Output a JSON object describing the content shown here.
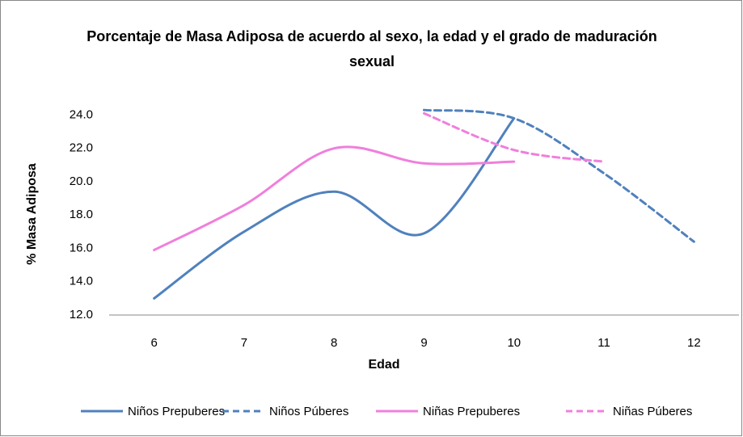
{
  "chart_data": {
    "type": "line",
    "title": "Porcentaje de Masa Adiposa de acuerdo al sexo, la edad y el grado de maduración sexual",
    "x_label": "Edad",
    "y_label": "% Masa Adiposa",
    "categories": [
      "6",
      "7",
      "8",
      "9",
      "10",
      "11",
      "12"
    ],
    "ylim": [
      12,
      24.6
    ],
    "yticks": [
      {
        "value": 12,
        "label": "12.0"
      },
      {
        "value": 14,
        "label": "14.0"
      },
      {
        "value": 16,
        "label": "16.0"
      },
      {
        "value": 18,
        "label": "18.0"
      },
      {
        "value": 20,
        "label": "20.0"
      },
      {
        "value": 22,
        "label": "22.0"
      },
      {
        "value": 24,
        "label": "24.0"
      }
    ],
    "smooth": true,
    "grid": false,
    "legend": "bottom",
    "series": [
      {
        "name": "Niños Prepuberes",
        "color": "#4f81bd",
        "dashed": false,
        "values": [
          13.0,
          17.0,
          19.4,
          16.9,
          23.8,
          null,
          null
        ]
      },
      {
        "name": "Niños Púberes",
        "color": "#4f81bd",
        "dashed": true,
        "values": [
          null,
          null,
          null,
          24.3,
          23.8,
          20.5,
          16.4
        ]
      },
      {
        "name": "Niñas Prepuberes",
        "color": "#f07fdc",
        "dashed": false,
        "values": [
          15.9,
          18.6,
          22.0,
          21.1,
          21.2,
          null,
          null
        ]
      },
      {
        "name": "Niñas Púberes",
        "color": "#f07fdc",
        "dashed": true,
        "values": [
          null,
          null,
          null,
          24.1,
          21.9,
          21.2,
          null
        ]
      }
    ]
  }
}
